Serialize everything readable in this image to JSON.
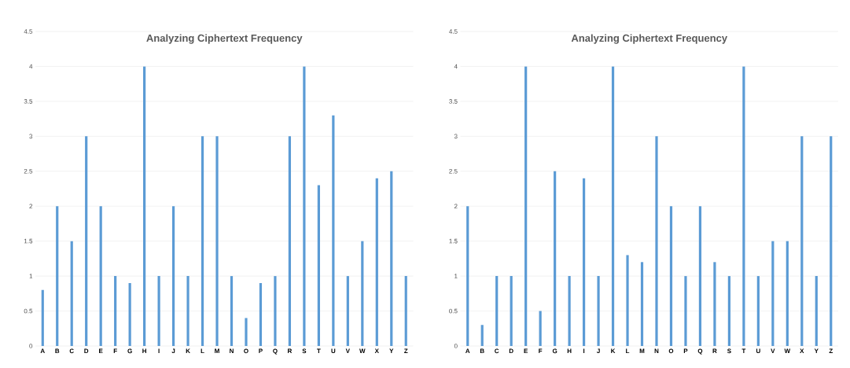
{
  "chart_data": [
    {
      "type": "bar",
      "title": "Analyzing  Ciphertext Frequency",
      "categories": [
        "A",
        "B",
        "C",
        "D",
        "E",
        "F",
        "G",
        "H",
        "I",
        "J",
        "K",
        "L",
        "M",
        "N",
        "O",
        "P",
        "Q",
        "R",
        "S",
        "T",
        "U",
        "V",
        "W",
        "X",
        "Y",
        "Z"
      ],
      "values": [
        0.8,
        2,
        1.5,
        3,
        2,
        1,
        0.9,
        4,
        1,
        2,
        1,
        3,
        3,
        1,
        0.4,
        0.9,
        1,
        3,
        4,
        2.3,
        3.3,
        1,
        1.5,
        2.4,
        2.5,
        1
      ],
      "color": "#5b9bd5",
      "ylim": [
        0,
        4.5
      ],
      "yticks": [
        0,
        0.5,
        1,
        1.5,
        2,
        2.5,
        3,
        3.5,
        4,
        4.5
      ],
      "grid": "y"
    },
    {
      "type": "bar",
      "title": "Analyzing  Ciphertext Frequency",
      "categories": [
        "A",
        "B",
        "C",
        "D",
        "E",
        "F",
        "G",
        "H",
        "I",
        "J",
        "K",
        "L",
        "M",
        "N",
        "O",
        "P",
        "Q",
        "R",
        "S",
        "T",
        "U",
        "V",
        "W",
        "X",
        "Y",
        "Z"
      ],
      "values": [
        2,
        0.3,
        1,
        1,
        4,
        0.5,
        2.5,
        1,
        2.4,
        1,
        4,
        1.3,
        1.2,
        3,
        2,
        1,
        2,
        1.2,
        1,
        4,
        1,
        1.5,
        1.5,
        3,
        1,
        3
      ],
      "color": "#5b9bd5",
      "ylim": [
        0,
        4.5
      ],
      "yticks": [
        0,
        0.5,
        1,
        1.5,
        2,
        2.5,
        3,
        3.5,
        4,
        4.5
      ],
      "grid": "y"
    }
  ]
}
